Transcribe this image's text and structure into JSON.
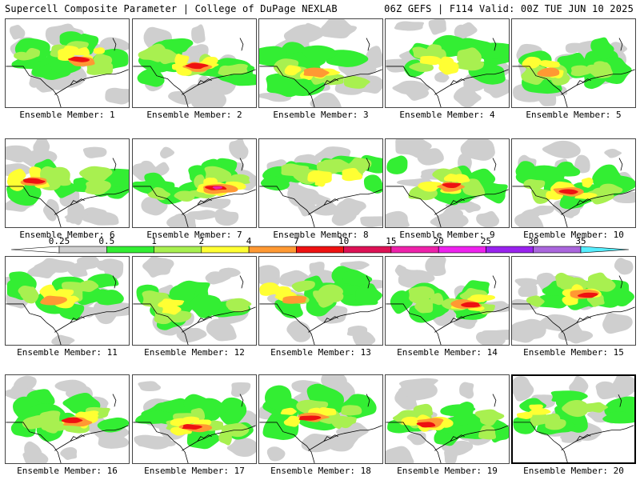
{
  "header": {
    "title": "Supercell Composite Parameter | College of DuPage NEXLAB",
    "run_info": "06Z GEFS | F114 Valid: 00Z TUE JUN 10 2025"
  },
  "colors": {
    "missing_gray": "#cfcfcf",
    "green": "#33ee33",
    "light_green": "#a8f050",
    "yellow": "#ffff33",
    "orange": "#ff9933",
    "red": "#ee1111",
    "magenta": "#ee22aa",
    "cyan": "#55eeff"
  },
  "colorbar": {
    "labels": [
      "0.25",
      "0.5",
      "1",
      "2",
      "4",
      "7",
      "10",
      "15",
      "20",
      "25",
      "30",
      "35"
    ],
    "colors": [
      "#ffffff",
      "#cfcfcf",
      "#33ee33",
      "#a8f050",
      "#ffff33",
      "#ff9933",
      "#ee1111",
      "#dd1155",
      "#ee22aa",
      "#ee22ee",
      "#9922ee",
      "#aa66dd",
      "#55eeff"
    ]
  },
  "panels": [
    {
      "caption": "Ensemble Member: 1",
      "intensity": 3
    },
    {
      "caption": "Ensemble Member: 2",
      "intensity": 3
    },
    {
      "caption": "Ensemble Member: 3",
      "intensity": 2
    },
    {
      "caption": "Ensemble Member: 4",
      "intensity": 1
    },
    {
      "caption": "Ensemble Member: 5",
      "intensity": 2
    },
    {
      "caption": "Ensemble Member: 6",
      "intensity": 3
    },
    {
      "caption": "Ensemble Member: 7",
      "intensity": 4
    },
    {
      "caption": "Ensemble Member: 8",
      "intensity": 1
    },
    {
      "caption": "Ensemble Member: 9",
      "intensity": 3
    },
    {
      "caption": "Ensemble Member: 10",
      "intensity": 3
    },
    {
      "caption": "Ensemble Member: 11",
      "intensity": 2
    },
    {
      "caption": "Ensemble Member: 12",
      "intensity": 1
    },
    {
      "caption": "Ensemble Member: 13",
      "intensity": 2
    },
    {
      "caption": "Ensemble Member: 14",
      "intensity": 3
    },
    {
      "caption": "Ensemble Member: 15",
      "intensity": 3
    },
    {
      "caption": "Ensemble Member: 16",
      "intensity": 3
    },
    {
      "caption": "Ensemble Member: 17",
      "intensity": 3
    },
    {
      "caption": "Ensemble Member: 18",
      "intensity": 3
    },
    {
      "caption": "Ensemble Member: 19",
      "intensity": 3
    },
    {
      "caption": "Ensemble Member: 20",
      "intensity": 1,
      "selected": true
    }
  ]
}
